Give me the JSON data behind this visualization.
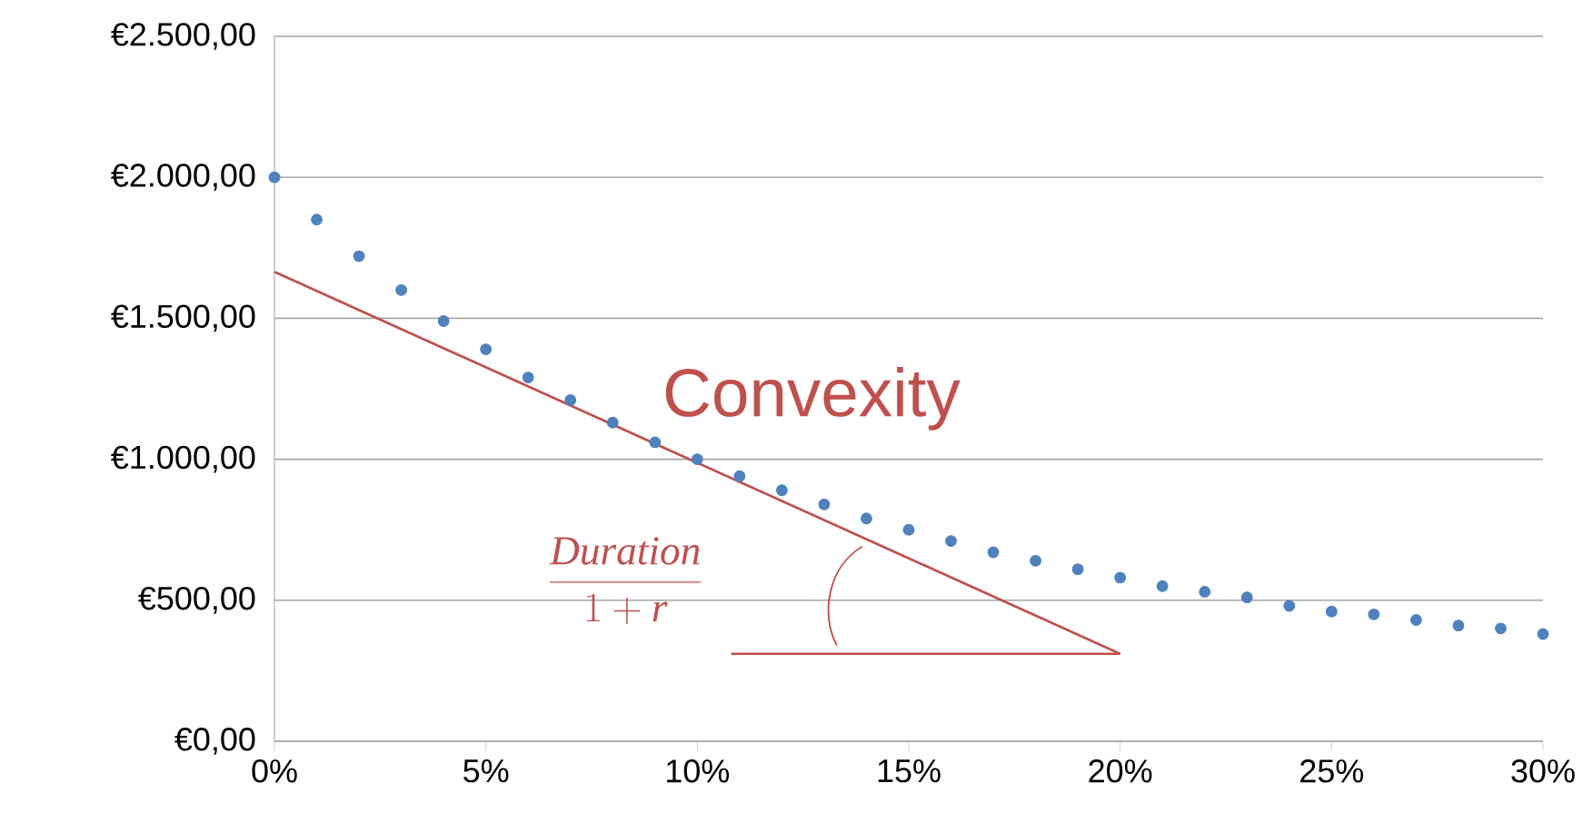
{
  "chart_data": {
    "type": "scatter",
    "x": [
      0,
      1,
      2,
      3,
      4,
      5,
      6,
      7,
      8,
      9,
      10,
      11,
      12,
      13,
      14,
      15,
      16,
      17,
      18,
      19,
      20,
      21,
      22,
      23,
      24,
      25,
      26,
      27,
      28,
      29,
      30
    ],
    "series": [
      {
        "color": "#4f81bd",
        "marker": "circle",
        "values": [
          2000,
          1850,
          1720,
          1600,
          1490,
          1390,
          1290,
          1210,
          1130,
          1060,
          1000,
          940,
          890,
          840,
          790,
          750,
          710,
          670,
          640,
          610,
          580,
          550,
          530,
          510,
          480,
          460,
          450,
          430,
          410,
          400,
          380
        ]
      },
      {
        "type": "line",
        "color": "#c0504d",
        "marker": "none",
        "x": [
          0,
          20
        ],
        "values": [
          1665,
          310
        ]
      },
      {
        "type": "line",
        "color": "#c0504d",
        "marker": "none",
        "x": [
          10.8,
          20
        ],
        "values": [
          310,
          310
        ]
      }
    ],
    "xlim": [
      0,
      30
    ],
    "ylim": [
      0,
      2500
    ],
    "xticks": [
      {
        "value": 0,
        "label": "0%"
      },
      {
        "value": 5,
        "label": "5%"
      },
      {
        "value": 10,
        "label": "10%"
      },
      {
        "value": 15,
        "label": "15%"
      },
      {
        "value": 20,
        "label": "20%"
      },
      {
        "value": 25,
        "label": "25%"
      },
      {
        "value": 30,
        "label": "30%"
      }
    ],
    "yticks": [
      {
        "value": 0,
        "label": "€0,00"
      },
      {
        "value": 500,
        "label": "€500,00"
      },
      {
        "value": 1000,
        "label": "€1.000,00"
      },
      {
        "value": 1500,
        "label": "€1.500,00"
      },
      {
        "value": 2000,
        "label": "€2.000,00"
      },
      {
        "value": 2500,
        "label": "€2.500,00"
      }
    ],
    "grid": "y",
    "annotations": [
      "Convexity",
      "\\frac{Duration}{1+r}"
    ]
  }
}
